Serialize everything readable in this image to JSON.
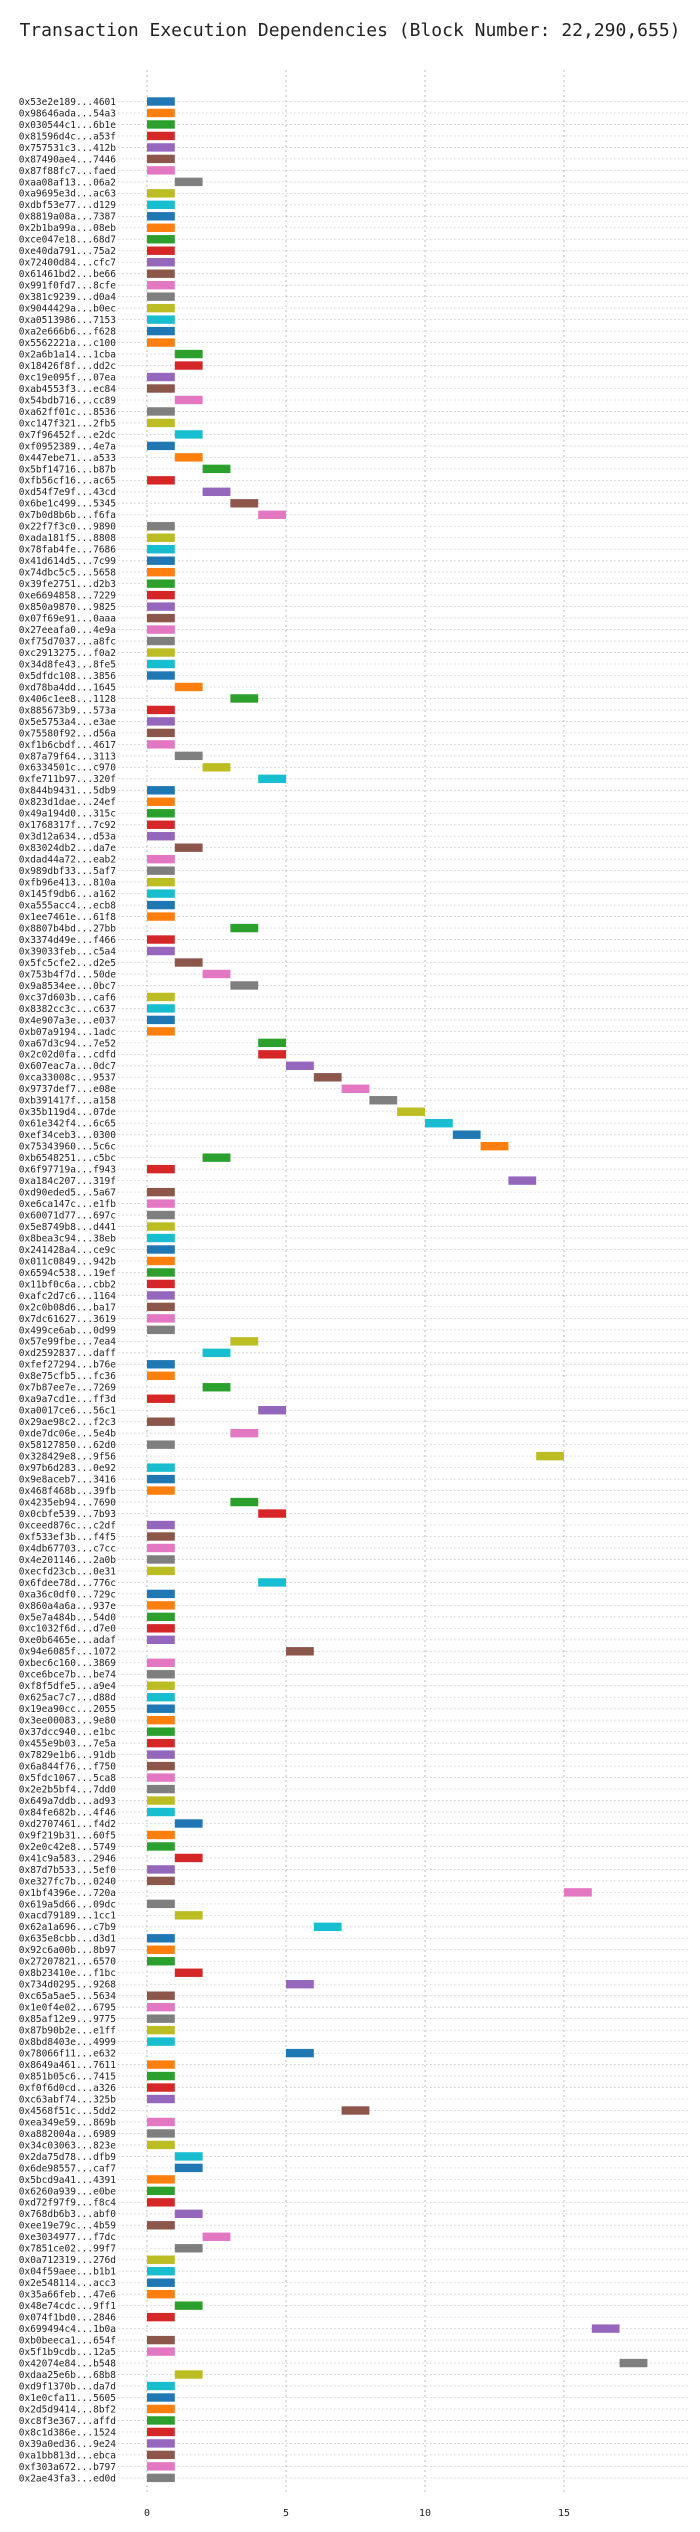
{
  "chart_data": {
    "type": "bar",
    "orientation": "horizontal",
    "title": "Transaction Execution Dependencies (Block Number: 22,290,655)",
    "xlabel": "",
    "ylabel": "",
    "xlim": [
      0,
      19
    ],
    "x_ticks": [
      0,
      5,
      10,
      15
    ],
    "grid": "dotted, horizontal and vertical",
    "bar_length": 1,
    "palette": [
      "#1f77b4",
      "#ff7f0e",
      "#2ca02c",
      "#d62728",
      "#9467bd",
      "#8c564b",
      "#e377c2",
      "#7f7f7f",
      "#bcbd22",
      "#17becf"
    ],
    "categories": [
      "0x53e2e189...4601",
      "0x98646ada...54a3",
      "0x030544c1...6b1e",
      "0x81596d4c...a53f",
      "0x757531c3...412b",
      "0x87490ae4...7446",
      "0x87f88fc7...faed",
      "0xaa08af13...06a2",
      "0xa9695e3d...ac63",
      "0xdbf53e77...d129",
      "0x8819a08a...7387",
      "0x2b1ba99a...08eb",
      "0xce047e18...68d7",
      "0xe40da791...75a2",
      "0x72400d84...cfc7",
      "0x61461bd2...be66",
      "0x991f0fd7...8cfe",
      "0x381c9239...d0a4",
      "0x9044429a...b0ec",
      "0xa0513986...7153",
      "0xa2e666b6...f628",
      "0x5562221a...c100",
      "0x2a6b1a14...1cba",
      "0x18426f8f...dd2c",
      "0xc19e095f...07ea",
      "0xab4553f3...ec84",
      "0x54bdb716...cc89",
      "0xa62ff01c...8536",
      "0xc147f321...2fb5",
      "0x7f96452f...e2dc",
      "0xf0952389...4e7a",
      "0x447ebe71...a533",
      "0x5bf14716...b87b",
      "0xfb56cf16...ac65",
      "0xd54f7e9f...43cd",
      "0x6be1c499...5345",
      "0x7b0d8b6b...f6fa",
      "0x22f7f3c0...9890",
      "0xada181f5...8808",
      "0x78fab4fe...7686",
      "0x41d614d5...7c99",
      "0x74dbc5c5...5658",
      "0x39fe2751...d2b3",
      "0xe6694858...7229",
      "0x850a9870...9825",
      "0x07f69e91...0aaa",
      "0x27eeafa0...4e9a",
      "0xf75d7037...a8fc",
      "0xc2913275...f0a2",
      "0x34d8fe43...8fe5",
      "0x5dfdc108...3856",
      "0xd78ba4dd...1645",
      "0x406c1ee8...1128",
      "0x885673b9...573a",
      "0x5e5753a4...e3ae",
      "0x75580f92...d56a",
      "0xf1b6cbdf...4617",
      "0x87a79f64...3113",
      "0x6334501c...c970",
      "0xfe711b97...320f",
      "0x844b9431...5db9",
      "0x823d1dae...24ef",
      "0x49a194d0...315c",
      "0x1768317f...7c92",
      "0x3d12a634...d53a",
      "0x83024db2...da7e",
      "0xdad44a72...eab2",
      "0x989dbf33...5af7",
      "0xfb96e413...810a",
      "0x145f9db6...a162",
      "0xa555acc4...ecb8",
      "0x1ee7461e...61f8",
      "0x8807b4bd...27bb",
      "0x3374d49e...f466",
      "0x39033feb...c5a4",
      "0x5fc5cfe2...d2e5",
      "0x753b4f7d...50de",
      "0x9a8534ee...0bc7",
      "0xc37d603b...caf6",
      "0x8382cc3c...c637",
      "0x4e907a3e...e037",
      "0xb07a9194...1adc",
      "0xa67d3c94...7e52",
      "0x2c02d0fa...cdfd",
      "0x607eac7a...0dc7",
      "0xca33008c...9537",
      "0x9737def7...e08e",
      "0xb391417f...a158",
      "0x35b119d4...07de",
      "0x61e342f4...6c65",
      "0xef34ceb3...0300",
      "0x75343960...5c6c",
      "0xb6548251...c5bc",
      "0x6f97719a...f943",
      "0xa184c207...319f",
      "0xd90eded5...5a67",
      "0xe6ca147c...e1fb",
      "0x60071d77...697c",
      "0x5e8749b8...d441",
      "0x8bea3c94...38eb",
      "0x241428a4...ce9c",
      "0x011c0849...942b",
      "0x6594c538...19ef",
      "0x11bf0c6a...cbb2",
      "0xafc2d7c6...1164",
      "0x2c0b08d6...ba17",
      "0x7dc61627...3619",
      "0x499ce6ab...0d99",
      "0x57e99fbe...7ea4",
      "0xd2592837...daff",
      "0xfef27294...b76e",
      "0x8e75cfb5...fc36",
      "0x7b87ee7e...7269",
      "0xa9a7cd1e...ff3d",
      "0xa0017ce6...56c1",
      "0x29ae98c2...f2c3",
      "0xde7dc06e...5e4b",
      "0x58127850...62d0",
      "0x328429e8...9f56",
      "0x97b6d283...0e92",
      "0x9e8aceb7...3416",
      "0x468f468b...39fb",
      "0x4235eb94...7690",
      "0x0cbfe539...7b93",
      "0xceed876c...c2df",
      "0xf533ef3b...f4f5",
      "0x4db67703...c7cc",
      "0x4e201146...2a0b",
      "0xecfd23cb...0e31",
      "0x6fdee78d...776c",
      "0xa36c0df0...729c",
      "0x860a4a6a...937e",
      "0x5e7a484b...54d0",
      "0xc1032f6d...d7e0",
      "0xe0b6465e...adaf",
      "0x94e6085f...1072",
      "0xbec6c160...3869",
      "0xce6bce7b...be74",
      "0xf8f5dfe5...a9e4",
      "0x625ac7c7...d88d",
      "0x19ea90cc...2055",
      "0x3ee00083...9e80",
      "0x37dcc940...e1bc",
      "0x455e9b03...7e5a",
      "0x7829e1b6...91db",
      "0x6a844f76...f750",
      "0x5fdc1067...5ca8",
      "0x2e2b5bf4...7dd0",
      "0x649a7ddb...ad93",
      "0x84fe682b...4f46",
      "0xd2707461...f4d2",
      "0x9f219b31...60f5",
      "0x2e0c42e8...5749",
      "0x41c9a583...2946",
      "0x87d7b533...5ef0",
      "0xe327fc7b...0240",
      "0x1bf4396e...720a",
      "0x619a5d66...09dc",
      "0xacd79189...1cc1",
      "0x62a1a696...c7b9",
      "0x635e8cbb...d3d1",
      "0x92c6a00b...8b97",
      "0x27207821...6570",
      "0x8b23410e...f1bc",
      "0x734d0295...9268",
      "0xc65a5ae5...5634",
      "0x1e0f4e02...6795",
      "0x85af12e9...9775",
      "0x87b90b2e...e1ff",
      "0x8bd8403e...4999",
      "0x78066f11...e632",
      "0x8649a461...7611",
      "0x851b05c6...7415",
      "0xf0f6d0cd...a326",
      "0xc63abf74...325b",
      "0x4568f51c...5dd2",
      "0xea349e59...869b",
      "0xa882004a...6989",
      "0x34c03063...823e",
      "0x2da75d78...dfb9",
      "0x6de98557...caf7",
      "0x5bcd9a41...4391",
      "0x6260a939...e0be",
      "0xd72f97f9...f8c4",
      "0x768db6b3...abf0",
      "0xee19e79c...4b59",
      "0xe3034977...f7dc",
      "0x7851ce02...99f7",
      "0x0a712319...276d",
      "0x04f59aee...b1b1",
      "0x2e548114...acc3",
      "0x35a66feb...47e6",
      "0x48e74cdc...9ff1",
      "0x074f1bd0...2846",
      "0x699494c4...1b0a",
      "0xb0beeca1...654f",
      "0x5f1b9cdb...12a5",
      "0x42074e84...b548",
      "0xdaa25e6b...68b8",
      "0xd9f1370b...da7d",
      "0x1e0cfa11...5605",
      "0x2d5d9414...8bf2",
      "0xc8f3e367...affd",
      "0x8c1d386e...1524",
      "0x39a0ed36...9e24",
      "0xa1bb813d...ebca",
      "0xf303a672...b797",
      "0x2ae43fa3...ed0d"
    ],
    "values": [
      0,
      0,
      0,
      0,
      0,
      0,
      0,
      1,
      0,
      0,
      0,
      0,
      0,
      0,
      0,
      0,
      0,
      0,
      0,
      0,
      0,
      0,
      1,
      1,
      0,
      0,
      1,
      0,
      0,
      1,
      0,
      1,
      2,
      0,
      2,
      3,
      4,
      0,
      0,
      0,
      0,
      0,
      0,
      0,
      0,
      0,
      0,
      0,
      0,
      0,
      0,
      1,
      3,
      0,
      0,
      0,
      0,
      1,
      2,
      4,
      0,
      0,
      0,
      0,
      0,
      1,
      0,
      0,
      0,
      0,
      0,
      0,
      3,
      0,
      0,
      1,
      2,
      3,
      0,
      0,
      0,
      0,
      4,
      4,
      5,
      6,
      7,
      8,
      9,
      10,
      11,
      12,
      2,
      0,
      13,
      0,
      0,
      0,
      0,
      0,
      0,
      0,
      0,
      0,
      0,
      0,
      0,
      0,
      3,
      2,
      0,
      0,
      2,
      0,
      4,
      0,
      3,
      0,
      14,
      0,
      0,
      0,
      3,
      4,
      0,
      0,
      0,
      0,
      0,
      4,
      0,
      0,
      0,
      0,
      0,
      5,
      0,
      0,
      0,
      0,
      0,
      0,
      0,
      0,
      0,
      0,
      0,
      0,
      0,
      0,
      1,
      0,
      0,
      1,
      0,
      0,
      15,
      0,
      1,
      6,
      0,
      0,
      0,
      1,
      5,
      0,
      0,
      0,
      0,
      0,
      5,
      0,
      0,
      0,
      0,
      7,
      0,
      0,
      0,
      1,
      1,
      0,
      0,
      0,
      1,
      0,
      2,
      1,
      0,
      0,
      0,
      0,
      1,
      0,
      16,
      0,
      0,
      17,
      1,
      0,
      0,
      0,
      0,
      0,
      0,
      0,
      0,
      0
    ]
  }
}
